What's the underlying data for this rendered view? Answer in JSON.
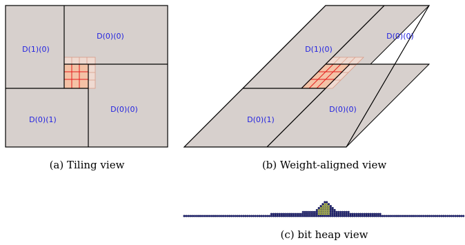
{
  "colors": {
    "tile_fill": "#d7d0cd",
    "tile_stroke": "#000000",
    "label_color": "#1f1fe0",
    "overlap_fill": "#f4c2a6",
    "overlap_grid": "#e51c1c",
    "overlap_faint_fill": "#efdad1",
    "overlap_faint_grid": "#d89a86",
    "bit_dot_fill": "#1c1f7a",
    "bit_dot_center": "#d8e63a",
    "bit_dot_stroke": "#0d0f3d"
  },
  "panel_a": {
    "labels": {
      "d10": "D(1)(0)",
      "d00_top": "D(0)(0)",
      "d01": "D(0)(1)",
      "d00_bottom": "D(0)(0)"
    },
    "caption": "(a)  Tiling view"
  },
  "panel_b": {
    "labels": {
      "d10": "D(1)(0)",
      "d00_top": "D(0)(0)",
      "d01": "D(0)(1)",
      "d00_bottom": "D(0)(0)"
    },
    "caption": "(b)  Weight-aligned view"
  },
  "panel_c": {
    "caption": "(c)  bit heap view",
    "columns": [
      1,
      1,
      1,
      1,
      1,
      1,
      1,
      1,
      1,
      1,
      1,
      1,
      1,
      1,
      1,
      1,
      1,
      1,
      1,
      1,
      1,
      1,
      1,
      1,
      1,
      1,
      1,
      1,
      1,
      1,
      1,
      1,
      1,
      1,
      1,
      1,
      1,
      1,
      1,
      1,
      1,
      1,
      1,
      1,
      2,
      2,
      2,
      2,
      2,
      2,
      2,
      2,
      2,
      2,
      2,
      2,
      2,
      2,
      2,
      2,
      3,
      3,
      3,
      3,
      3,
      3,
      3,
      4,
      5,
      6,
      7,
      8,
      8,
      7,
      6,
      5,
      4,
      3,
      3,
      3,
      3,
      3,
      3,
      3,
      2,
      2,
      2,
      2,
      2,
      2,
      2,
      2,
      2,
      2,
      2,
      2,
      2,
      2,
      2,
      2,
      1,
      1,
      1,
      1,
      1,
      1,
      1,
      1,
      1,
      1,
      1,
      1,
      1,
      1,
      1,
      1,
      1,
      1,
      1,
      1,
      1,
      1,
      1,
      1,
      1,
      1,
      1,
      1,
      1,
      1,
      1,
      1,
      1,
      1,
      1,
      1,
      1,
      1,
      1,
      1,
      1,
      1
    ]
  }
}
